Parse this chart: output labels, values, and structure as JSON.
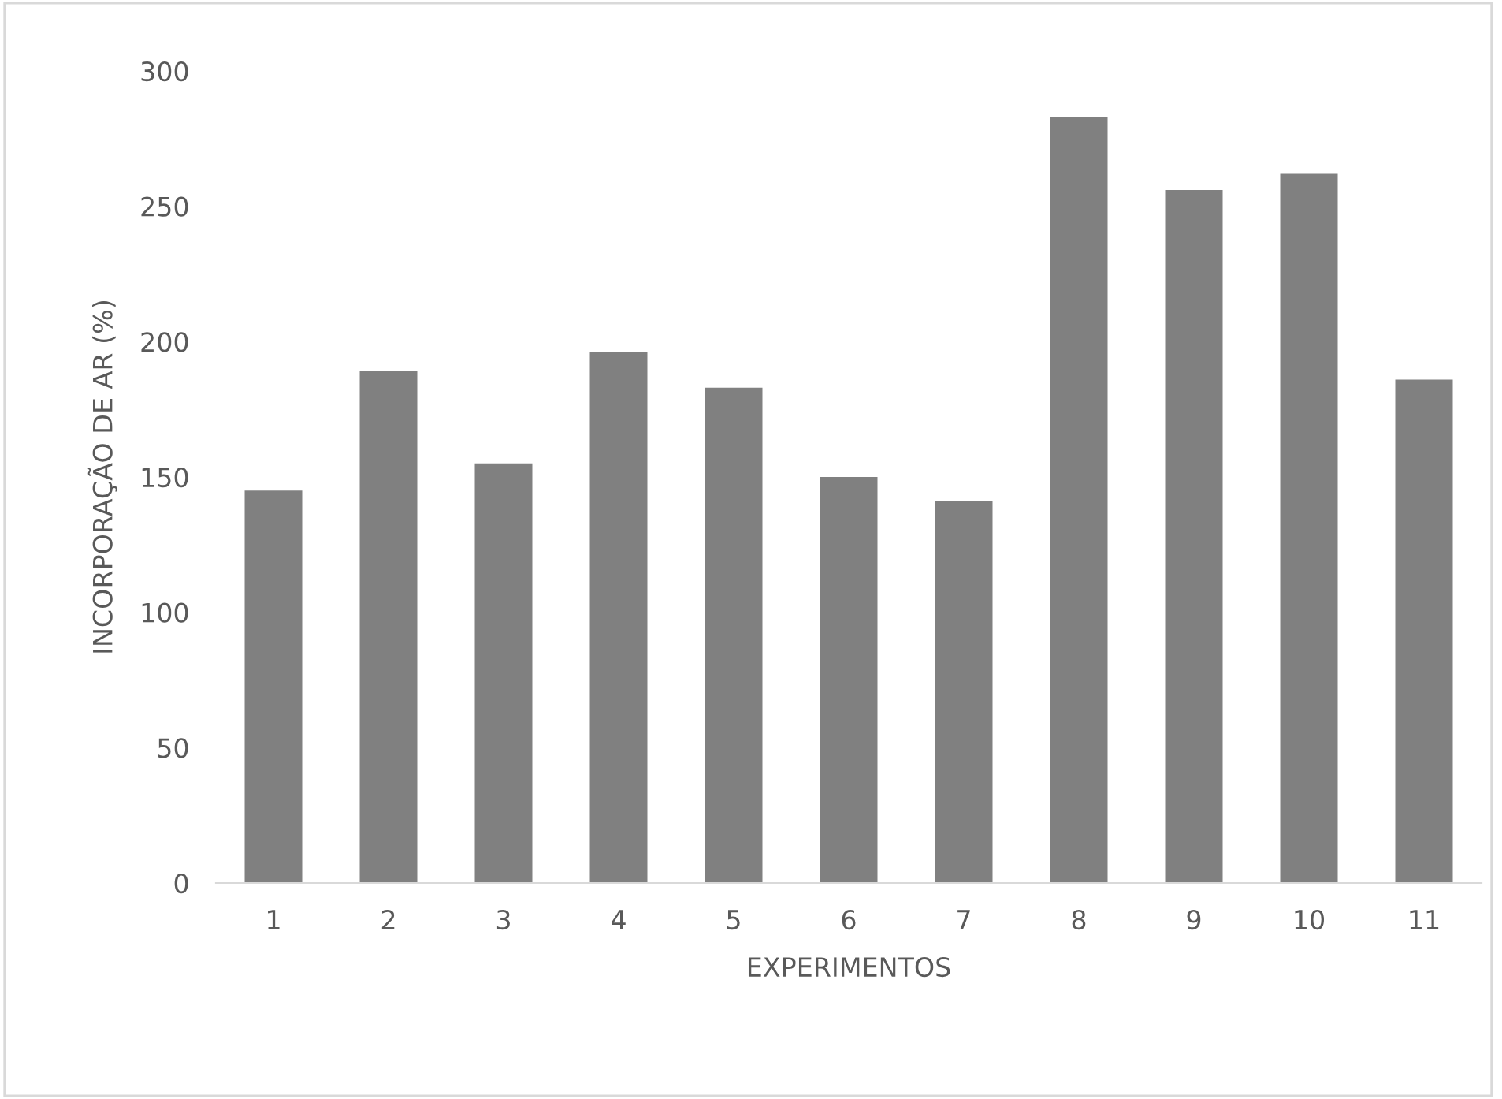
{
  "chart_data": {
    "type": "bar",
    "xlabel": "EXPERIMENTOS",
    "ylabel": "INCORPORAÇÃO DE AR (%)",
    "categories": [
      "1",
      "2",
      "3",
      "4",
      "5",
      "6",
      "7",
      "8",
      "9",
      "10",
      "11"
    ],
    "values": [
      145,
      189,
      155,
      196,
      183,
      150,
      141,
      283,
      256,
      262,
      186
    ],
    "color": "#808080",
    "ylim": [
      0,
      300
    ],
    "yticks": [
      0,
      50,
      100,
      150,
      200,
      250,
      300
    ],
    "grid": false,
    "legend": false
  }
}
